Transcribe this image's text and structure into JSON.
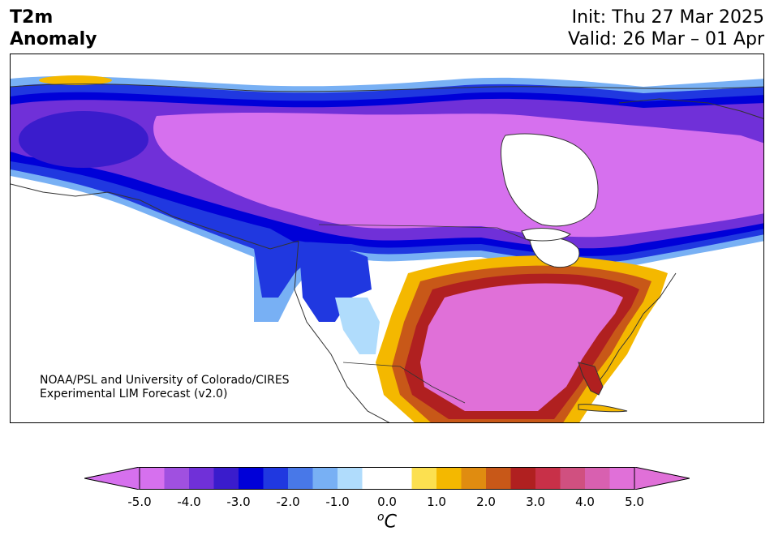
{
  "header": {
    "title_line1": "T2m",
    "title_line2": "Anomaly",
    "init": "Init: Thu 27 Mar 2025",
    "valid": "Valid: 26 Mar – 01 Apr"
  },
  "credit": {
    "line1": "NOAA/PSL and University of Colorado/CIRES",
    "line2": "Experimental LIM Forecast (v2.0)"
  },
  "colorbar": {
    "unit_super": "o",
    "unit_main": "C",
    "ticks": [
      "-5.0",
      "-4.0",
      "-3.0",
      "-2.0",
      "-1.0",
      "0.0",
      "1.0",
      "2.0",
      "3.0",
      "4.0",
      "5.0"
    ],
    "bin_colors": [
      "#d670ee",
      "#a050e0",
      "#7030d8",
      "#3a1ccc",
      "#0000d8",
      "#2038e0",
      "#4878e8",
      "#78b0f4",
      "#b0dcfc",
      "#ffffff",
      "#ffffff",
      "#fce050",
      "#f4b800",
      "#e08c10",
      "#c85818",
      "#b02020",
      "#c83048",
      "#d05080",
      "#d860b0",
      "#e070d8"
    ],
    "extend_low_color": "#d670ee",
    "extend_high_color": "#e070d8"
  },
  "map_data": {
    "variable": "T2m Anomaly",
    "units": "°C",
    "region": "North America",
    "features": [
      "cold anomaly over Canada and northern US",
      "warm anomaly over southern and eastern US",
      "cold anomaly over western US coast"
    ]
  }
}
